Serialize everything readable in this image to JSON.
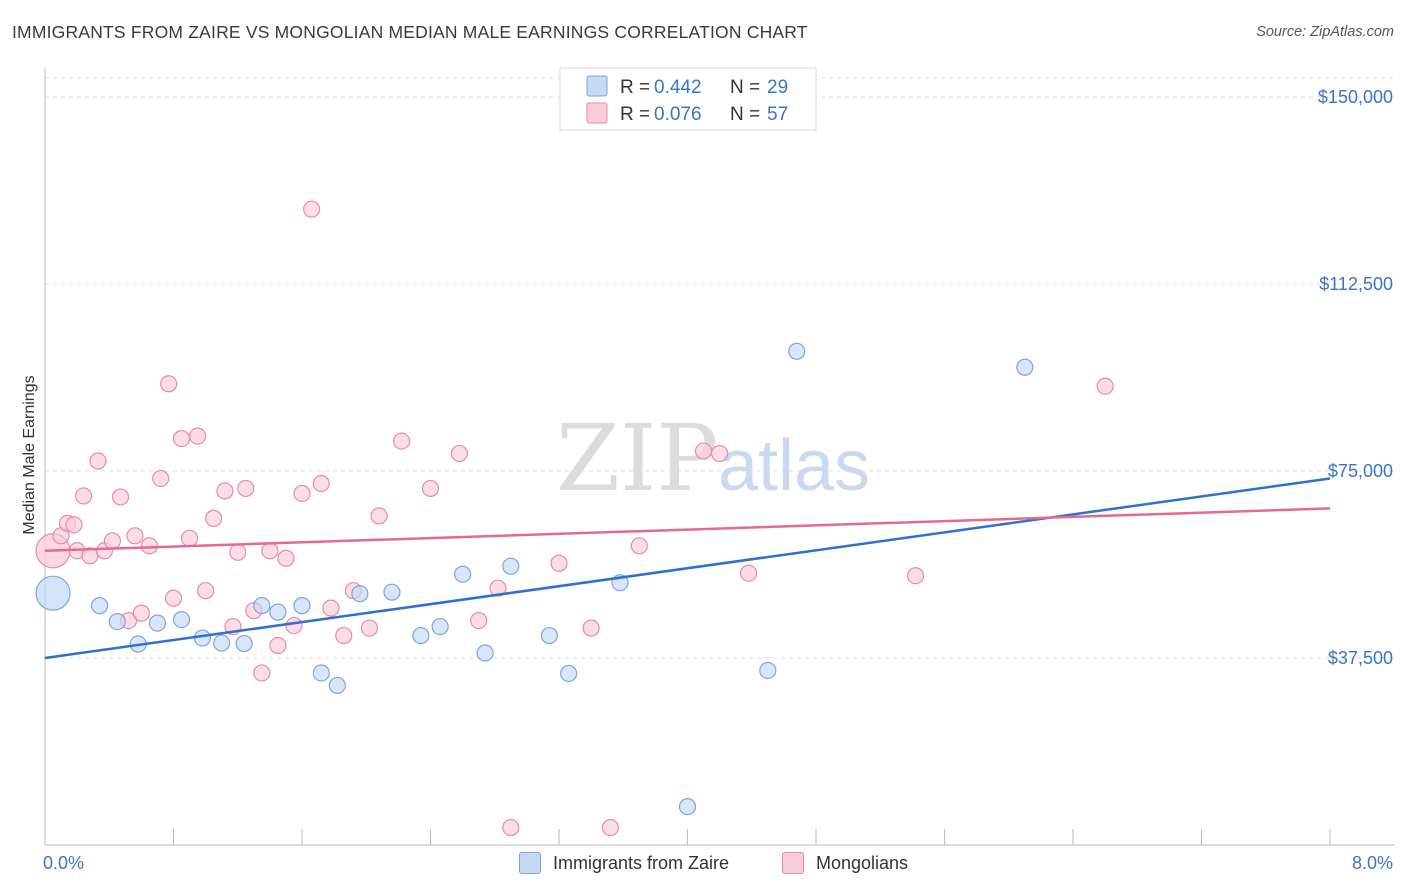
{
  "header": {
    "title": "IMMIGRANTS FROM ZAIRE VS MONGOLIAN MEDIAN MALE EARNINGS CORRELATION CHART",
    "source": "Source: ZipAtlas.com"
  },
  "watermark": {
    "zip": "ZIP",
    "atlas": "atlas"
  },
  "legend_box": {
    "rows": [
      {
        "r_label": "R = ",
        "r_value": "0.442",
        "n_label": "N = ",
        "n_value": "29"
      },
      {
        "r_label": "R = ",
        "r_value": "0.076",
        "n_label": "N = ",
        "n_value": "57"
      }
    ]
  },
  "bottom_legend": {
    "items": [
      {
        "label": "Immigrants from Zaire"
      },
      {
        "label": "Mongolians"
      }
    ]
  },
  "colors": {
    "blue_fill": "#c5d9f5",
    "blue_stroke": "#7aa6df",
    "blue_line": "#2f6fd0",
    "pink_fill": "#f8ccd9",
    "pink_stroke": "#e98aa8",
    "pink_line": "#e46a92",
    "axis_label": "#3b74c6"
  },
  "chart_data": {
    "type": "scatter",
    "title": "IMMIGRANTS FROM ZAIRE VS MONGOLIAN MEDIAN MALE EARNINGS CORRELATION CHART",
    "xlabel": "",
    "ylabel": "Median Male Earnings",
    "xlim": [
      0,
      8
    ],
    "ylim": [
      0,
      155000
    ],
    "x_tick_labels": [
      "0.0%",
      "8.0%"
    ],
    "y_ticks": [
      37500,
      75000,
      112500,
      150000
    ],
    "y_tick_labels": [
      "$37,500",
      "$75,000",
      "$112,500",
      "$150,000"
    ],
    "grid": true,
    "legend_position": "top-center",
    "series": [
      {
        "name": "Immigrants from Zaire",
        "color": "blue",
        "R": 0.442,
        "N": 29,
        "trend": {
          "x": [
            0,
            8
          ],
          "y": [
            37500,
            73500
          ]
        },
        "points": [
          [
            0.05,
            50500,
            "large"
          ],
          [
            0.34,
            48000
          ],
          [
            0.45,
            44800
          ],
          [
            0.58,
            40300
          ],
          [
            0.7,
            44500
          ],
          [
            0.85,
            45200
          ],
          [
            0.98,
            41500
          ],
          [
            1.1,
            40500
          ],
          [
            1.24,
            40400
          ],
          [
            1.35,
            48000
          ],
          [
            1.45,
            46700
          ],
          [
            1.6,
            48000
          ],
          [
            1.72,
            34500
          ],
          [
            1.82,
            32000
          ],
          [
            1.96,
            50400
          ],
          [
            2.16,
            50700
          ],
          [
            2.34,
            42000
          ],
          [
            2.46,
            43800
          ],
          [
            2.6,
            54300
          ],
          [
            2.74,
            38500
          ],
          [
            2.9,
            55900
          ],
          [
            3.14,
            42000
          ],
          [
            3.26,
            34400
          ],
          [
            3.58,
            52600
          ],
          [
            4.0,
            7700
          ],
          [
            4.5,
            35000
          ],
          [
            4.68,
            99000
          ],
          [
            6.1,
            95800
          ]
        ]
      },
      {
        "name": "Mongolians",
        "color": "pink",
        "R": 0.076,
        "N": 57,
        "trend": {
          "x": [
            0,
            8
          ],
          "y": [
            59000,
            67500
          ]
        },
        "points": [
          [
            0.05,
            59000,
            "large"
          ],
          [
            0.1,
            62000
          ],
          [
            0.14,
            64500
          ],
          [
            0.18,
            64200
          ],
          [
            0.2,
            59000
          ],
          [
            0.24,
            70000
          ],
          [
            0.28,
            58000
          ],
          [
            0.33,
            77000
          ],
          [
            0.37,
            59000
          ],
          [
            0.42,
            61000
          ],
          [
            0.47,
            69800
          ],
          [
            0.52,
            45000
          ],
          [
            0.56,
            62000
          ],
          [
            0.6,
            46500
          ],
          [
            0.65,
            60000
          ],
          [
            0.72,
            73500
          ],
          [
            0.77,
            92500
          ],
          [
            0.8,
            49500
          ],
          [
            0.85,
            81500
          ],
          [
            0.9,
            61500
          ],
          [
            0.95,
            82000
          ],
          [
            1.0,
            51000
          ],
          [
            1.05,
            65500
          ],
          [
            1.12,
            71000
          ],
          [
            1.17,
            43800
          ],
          [
            1.2,
            58700
          ],
          [
            1.25,
            71500
          ],
          [
            1.3,
            47000
          ],
          [
            1.35,
            34500
          ],
          [
            1.4,
            59000
          ],
          [
            1.45,
            40000
          ],
          [
            1.5,
            57500
          ],
          [
            1.55,
            44000
          ],
          [
            1.6,
            70500
          ],
          [
            1.66,
            127500
          ],
          [
            1.72,
            72500
          ],
          [
            1.78,
            47500
          ],
          [
            1.86,
            42000
          ],
          [
            1.92,
            51000
          ],
          [
            2.02,
            43500
          ],
          [
            2.08,
            66000
          ],
          [
            2.22,
            81000
          ],
          [
            2.4,
            71500
          ],
          [
            2.58,
            78500
          ],
          [
            2.7,
            45000
          ],
          [
            2.82,
            51500
          ],
          [
            2.9,
            3500
          ],
          [
            3.2,
            56500
          ],
          [
            3.4,
            43500
          ],
          [
            3.52,
            3500
          ],
          [
            3.7,
            60000
          ],
          [
            4.1,
            79000
          ],
          [
            4.2,
            78500
          ],
          [
            4.38,
            54500
          ],
          [
            5.42,
            54000
          ],
          [
            6.6,
            92000
          ]
        ]
      }
    ]
  }
}
